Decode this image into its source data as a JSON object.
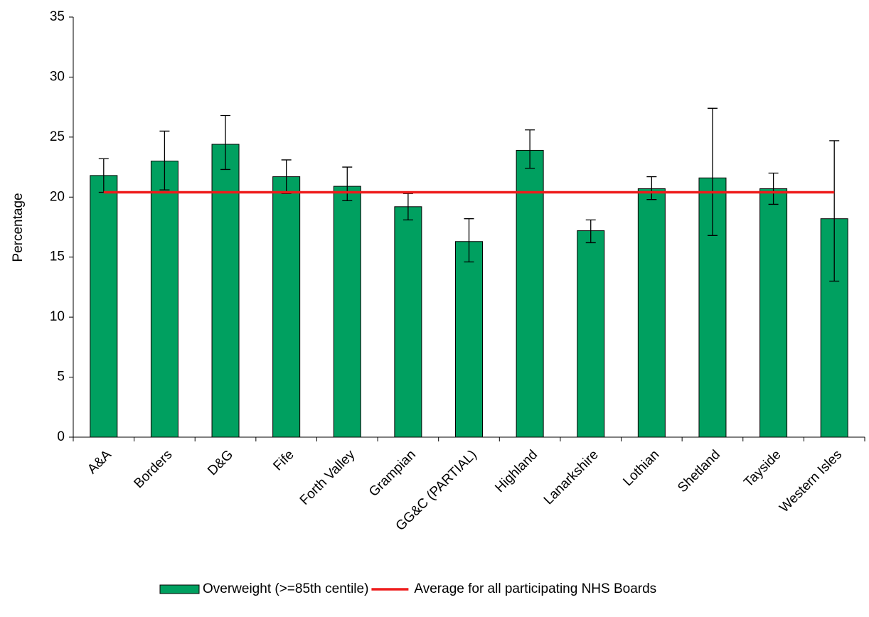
{
  "chart_data": {
    "type": "bar",
    "y_label": "Percentage",
    "categories": [
      "A&A",
      "Borders",
      "D&G",
      "Fife",
      "Forth Valley",
      "Grampian",
      "GG&C (PARTIAL)",
      "Highland",
      "Lanarkshire",
      "Lothian",
      "Shetland",
      "Tayside",
      "Western Isles"
    ],
    "series": [
      {
        "name": "Overweight (>=85th centile)",
        "type": "bar",
        "color": "#00a060",
        "values": [
          21.8,
          23.0,
          24.4,
          21.7,
          20.9,
          19.2,
          16.3,
          23.9,
          17.2,
          20.7,
          21.6,
          20.7,
          18.2
        ],
        "lower": [
          20.4,
          20.6,
          22.3,
          20.3,
          19.7,
          18.1,
          14.6,
          22.4,
          16.2,
          19.8,
          16.8,
          19.4,
          13.0
        ],
        "upper": [
          23.2,
          25.5,
          26.8,
          23.1,
          22.5,
          20.3,
          18.2,
          25.6,
          18.1,
          21.7,
          27.4,
          22.0,
          24.7
        ]
      },
      {
        "name": "Average for all participating NHS Boards",
        "type": "line",
        "color": "#ee1c1c",
        "values": [
          20.4,
          20.4,
          20.4,
          20.4,
          20.4,
          20.4,
          20.4,
          20.4,
          20.4,
          20.4,
          20.4,
          20.4,
          20.4
        ]
      }
    ],
    "ylim": [
      0,
      35
    ],
    "yticks": [
      0,
      5,
      10,
      15,
      20,
      25,
      30,
      35
    ],
    "grid": false,
    "legend": "bottom"
  }
}
